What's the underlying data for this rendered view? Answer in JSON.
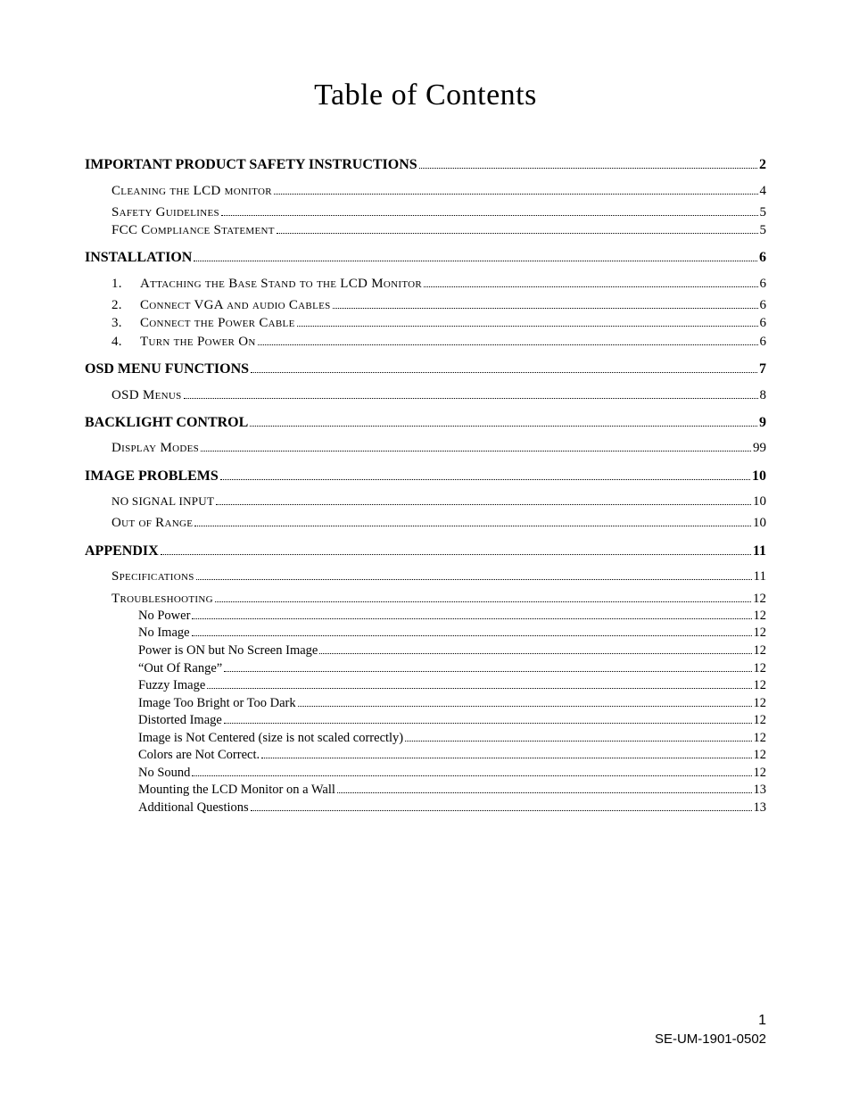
{
  "title": "Table of Contents",
  "footer": {
    "page_number": "1",
    "doc_code": "SE-UM-1901-0502"
  },
  "entries": [
    {
      "level": 1,
      "label": "IMPORTANT PRODUCT SAFETY INSTRUCTIONS",
      "page": "2"
    },
    {
      "level": 2,
      "style": "smallcaps",
      "label": "Cleaning the LCD monitor",
      "page": "4",
      "first_in_block": true
    },
    {
      "level": 2,
      "style": "smallcaps",
      "label": "Safety Guidelines",
      "page": "5"
    },
    {
      "level": 2,
      "style": "smallcaps",
      "label": "FCC Compliance Statement",
      "page": "5"
    },
    {
      "level": 1,
      "label": "INSTALLATION",
      "page": "6"
    },
    {
      "level": 2,
      "style": "smallcaps",
      "num": "1.",
      "label": "Attaching the Base Stand to the LCD Monitor",
      "page": "6",
      "first_in_block": true
    },
    {
      "level": 2,
      "style": "smallcaps",
      "num": "2.",
      "label": "Connect VGA and audio Cables",
      "page": "6"
    },
    {
      "level": 2,
      "style": "smallcaps",
      "num": "3.",
      "label": "Connect the Power Cable",
      "page": "6"
    },
    {
      "level": 2,
      "style": "smallcaps",
      "num": "4.",
      "label": "Turn the Power On",
      "page": "6"
    },
    {
      "level": 1,
      "label": "OSD MENU FUNCTIONS",
      "page": "7"
    },
    {
      "level": 2,
      "style": "smallcaps",
      "label": "OSD Menus",
      "page": "8",
      "first_in_block": true
    },
    {
      "level": 1,
      "label": "BACKLIGHT CONTROL",
      "page": "9"
    },
    {
      "level": 2,
      "style": "smallcaps",
      "label": "Display Modes",
      "page": "99",
      "first_in_block": true
    },
    {
      "level": 1,
      "label": "IMAGE PROBLEMS",
      "page": "10"
    },
    {
      "level": 2,
      "style": "uppercase",
      "label": "no signal input",
      "page": "10",
      "first_in_block": true
    },
    {
      "level": 2,
      "style": "smallcaps",
      "label": "Out of Range",
      "page": "10"
    },
    {
      "level": 1,
      "label": "APPENDIX",
      "page": "11"
    },
    {
      "level": 2,
      "style": "smallcaps",
      "label": "Specifications",
      "page": "11",
      "first_in_block": true
    },
    {
      "level": 2,
      "style": "smallcaps",
      "label": "Troubleshooting",
      "page": "12"
    },
    {
      "level": 3,
      "label": "No Power",
      "page": "12"
    },
    {
      "level": 3,
      "label": "No Image",
      "page": "12"
    },
    {
      "level": 3,
      "label": "Power is ON but No Screen Image",
      "page": "12"
    },
    {
      "level": 3,
      "label": "“Out Of Range”",
      "page": "12"
    },
    {
      "level": 3,
      "label": "Fuzzy Image",
      "page": "12"
    },
    {
      "level": 3,
      "label": "Image Too Bright or Too Dark",
      "page": "12"
    },
    {
      "level": 3,
      "label": "Distorted Image",
      "page": "12"
    },
    {
      "level": 3,
      "label": "Image is Not Centered (size is not scaled correctly)",
      "page": "12"
    },
    {
      "level": 3,
      "label": "Colors are Not Correct.",
      "page": "12"
    },
    {
      "level": 3,
      "label": "No Sound",
      "page": "12"
    },
    {
      "level": 3,
      "label": "Mounting the LCD Monitor on a Wall",
      "page": "13"
    },
    {
      "level": 3,
      "label": "Additional Questions",
      "page": "13"
    }
  ]
}
